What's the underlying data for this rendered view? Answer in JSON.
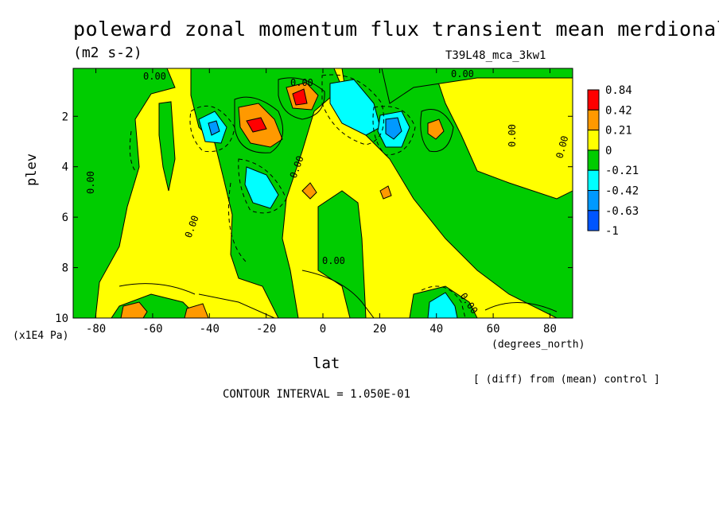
{
  "header": {
    "title": "poleward zonal momentum flux transient mean merdional",
    "units": "(m2 s-2)",
    "run_id": "T39L48_mca_3kw1"
  },
  "footer": {
    "diff_note": "[ (diff) from (mean) control ]",
    "contour_interval": "CONTOUR INTERVAL = 1.050E-01"
  },
  "chart_data": {
    "type": "contour",
    "xlabel": "lat",
    "ylabel": "plev",
    "x_unit_label": "(degrees_north)",
    "y_unit_label": "(x1E4 Pa)",
    "xlim": [
      -88,
      88
    ],
    "ylim": [
      10,
      0.1
    ],
    "y_inverted": true,
    "x_ticks": [
      -80,
      -60,
      -40,
      -20,
      0,
      20,
      40,
      60,
      80
    ],
    "y_ticks": [
      2,
      4,
      6,
      8,
      10
    ],
    "contour_interval": 0.105,
    "contour_labels": [
      "0.00"
    ],
    "colorbar": {
      "levels": [
        "0.84",
        "0.42",
        "0.21",
        "0",
        "-0.21",
        "-0.42",
        "-0.63",
        "-1"
      ],
      "colors": [
        "#ff0000",
        "#ff9900",
        "#ffff00",
        "#00cc00",
        "#00ffff",
        "#0099ff",
        "#0055ff"
      ]
    },
    "regions": [
      {
        "sign": "positive",
        "level": "0.42",
        "lat": -70,
        "plev": 9.9
      },
      {
        "sign": "positive",
        "level": "0.42",
        "lat": -48,
        "plev": 9.9
      },
      {
        "sign": "positive",
        "level": "0.84",
        "lat": -25,
        "plev": 2.5
      },
      {
        "sign": "positive",
        "level": "0.84",
        "lat": -8,
        "plev": 1.3
      },
      {
        "sign": "positive",
        "level": "0.42",
        "lat": -5,
        "plev": 5.0
      },
      {
        "sign": "positive",
        "level": "0.42",
        "lat": 22,
        "plev": 5.0
      },
      {
        "sign": "positive",
        "level": "0.42",
        "lat": 40,
        "plev": 2.5
      },
      {
        "sign": "negative",
        "level": "-0.42",
        "lat": -38,
        "plev": 2.3
      },
      {
        "sign": "negative",
        "level": "-0.42",
        "lat": -20,
        "plev": 4.7
      },
      {
        "sign": "negative",
        "level": "-0.42",
        "lat": 12,
        "plev": 2.0
      },
      {
        "sign": "negative",
        "level": "-0.63",
        "lat": 25,
        "plev": 2.5
      },
      {
        "sign": "negative",
        "level": "-0.42",
        "lat": 42,
        "plev": 9.7
      }
    ]
  }
}
